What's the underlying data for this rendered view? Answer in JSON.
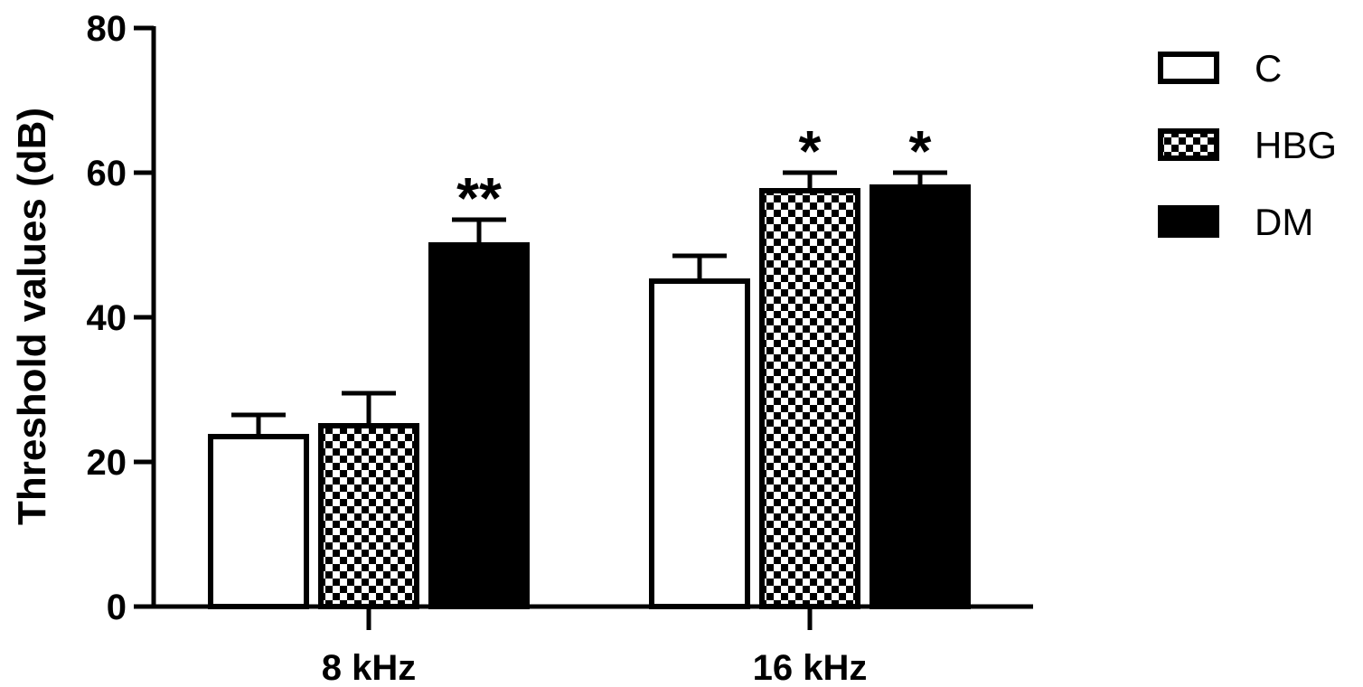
{
  "chart_data": {
    "type": "bar",
    "title": "",
    "xlabel": "",
    "ylabel": "Threshold values (dB)",
    "ylim": [
      0,
      80
    ],
    "yticks": [
      0,
      20,
      40,
      60,
      80
    ],
    "categories": [
      "8 kHz",
      "16 kHz"
    ],
    "series": [
      {
        "name": "C",
        "values": [
          23.5,
          45
        ],
        "errors": [
          3,
          3.5
        ],
        "fill": "#ffffff",
        "pattern": "none"
      },
      {
        "name": "HBG",
        "values": [
          25,
          57.5
        ],
        "errors": [
          4.5,
          2.5
        ],
        "fill": "#ffffff",
        "pattern": "checker"
      },
      {
        "name": "DM",
        "values": [
          50,
          58
        ],
        "errors": [
          3.5,
          2
        ],
        "fill": "#000000",
        "pattern": "none"
      }
    ],
    "annotations": [
      {
        "category": 0,
        "series": 2,
        "text": "**"
      },
      {
        "category": 1,
        "series": 1,
        "text": "*"
      },
      {
        "category": 1,
        "series": 2,
        "text": "*"
      }
    ],
    "legend": "top-right",
    "grid": false
  }
}
